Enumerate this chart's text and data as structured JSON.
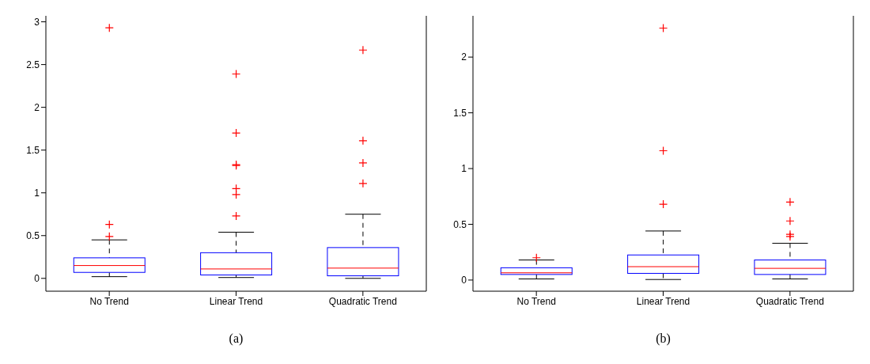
{
  "chart_data": [
    {
      "type": "box",
      "xlabel": "(a)",
      "categories": [
        "No Trend",
        "Linear Trend",
        "Quadratic Trend"
      ],
      "color": "#0000ff",
      "ylim": [
        -0.15,
        3.07
      ],
      "yticks": [
        0,
        0.5,
        1,
        1.5,
        2,
        2.5,
        3
      ],
      "grid": false,
      "legend": false,
      "boxes": [
        {
          "low": 0.02,
          "q1": 0.07,
          "median": 0.15,
          "q3": 0.24,
          "high": 0.45,
          "outliers": [
            0.49,
            0.63,
            2.93
          ]
        },
        {
          "low": 0.01,
          "q1": 0.04,
          "median": 0.11,
          "q3": 0.3,
          "high": 0.54,
          "outliers": [
            0.73,
            0.98,
            1.05,
            1.32,
            1.33,
            1.7,
            2.39
          ]
        },
        {
          "low": 0.0,
          "q1": 0.03,
          "median": 0.12,
          "q3": 0.36,
          "high": 0.75,
          "outliers": [
            1.11,
            1.35,
            1.61,
            2.67
          ]
        }
      ]
    },
    {
      "type": "box",
      "xlabel": "(b)",
      "categories": [
        "No Trend",
        "Linear Trend",
        "Quadratic Trend"
      ],
      "color": "#0000ff",
      "ylim": [
        -0.1,
        2.37
      ],
      "yticks": [
        0,
        0.5,
        1,
        1.5,
        2
      ],
      "grid": false,
      "legend": false,
      "boxes": [
        {
          "low": 0.01,
          "q1": 0.05,
          "median": 0.065,
          "q3": 0.11,
          "high": 0.18,
          "outliers": [
            0.2
          ]
        },
        {
          "low": 0.005,
          "q1": 0.06,
          "median": 0.12,
          "q3": 0.225,
          "high": 0.44,
          "outliers": [
            0.68,
            1.16,
            2.26
          ]
        },
        {
          "low": 0.01,
          "q1": 0.05,
          "median": 0.105,
          "q3": 0.18,
          "high": 0.33,
          "outliers": [
            0.39,
            0.41,
            0.53,
            0.7
          ]
        }
      ]
    }
  ]
}
